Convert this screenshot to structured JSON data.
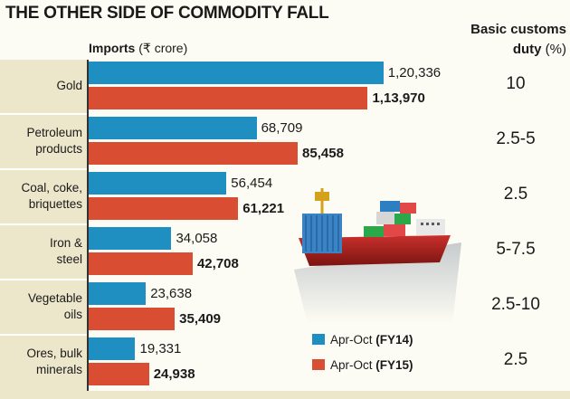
{
  "chart_data": {
    "type": "bar",
    "title": "THE OTHER SIDE OF COMMODITY FALL",
    "subtitle": "Imports",
    "unit": "(₹ crore)",
    "duty_header": "Basic customs duty",
    "duty_unit": "(%)",
    "categories": [
      "Gold",
      "Petroleum\nproducts",
      "Coal, coke,\nbriquettes",
      "Iron &\nsteel",
      "Vegetable\noils",
      "Ores, bulk\nminerals"
    ],
    "series": [
      {
        "name": "Apr-Oct",
        "period": "(FY14)",
        "color": "#1f8fc2",
        "values": [
          120336,
          68709,
          56454,
          34058,
          23638,
          19331
        ],
        "labels": [
          "1,20,336",
          "68,709",
          "56,454",
          "34,058",
          "23,638",
          "19,331"
        ]
      },
      {
        "name": "Apr-Oct",
        "period": "(FY15)",
        "color": "#d94e32",
        "values": [
          113970,
          85458,
          61221,
          42708,
          35409,
          24938
        ],
        "labels": [
          "1,13,970",
          "85,458",
          "61,221",
          "42,708",
          "35,409",
          "24,938"
        ]
      }
    ],
    "duty": [
      "10",
      "2.5-5",
      "2.5",
      "5-7.5",
      "2.5-10",
      "2.5"
    ],
    "xlim": [
      0,
      123000
    ]
  }
}
